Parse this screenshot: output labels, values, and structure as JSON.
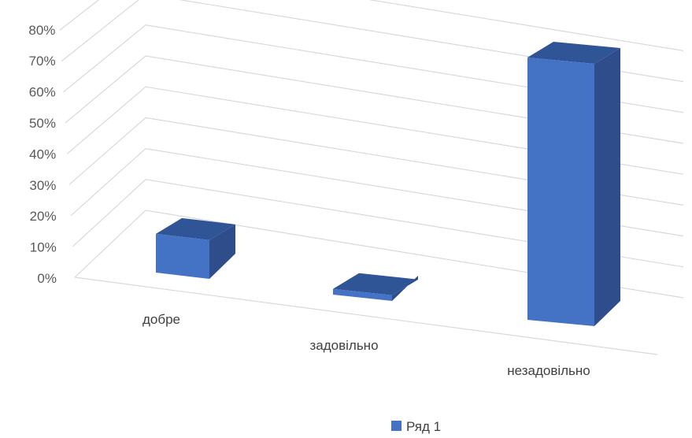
{
  "chart_data": {
    "type": "bar",
    "title": "",
    "xlabel": "",
    "ylabel": "",
    "categories": [
      "добре",
      "задовільно",
      "незадовільно"
    ],
    "series": [
      {
        "name": "Ряд 1",
        "values": [
          0.11,
          0.02,
          0.72
        ],
        "color": "#4472C4"
      }
    ],
    "yticks": [
      "0%",
      "10%",
      "20%",
      "30%",
      "40%",
      "50%",
      "60%",
      "70%",
      "80%"
    ],
    "ylim": [
      0,
      0.8
    ],
    "grid": true,
    "legend": "bottom",
    "view": "3d"
  }
}
